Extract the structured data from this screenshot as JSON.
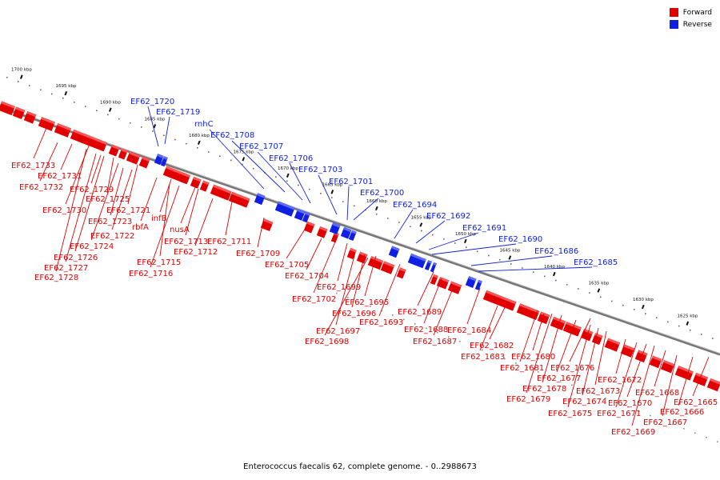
{
  "colors": {
    "forward": "#e00000",
    "forward_light": "#ff5555",
    "reverse": "#1020e0",
    "reverse_light": "#5c6cff",
    "axis": "#888888"
  },
  "legend": [
    {
      "label": "Forward",
      "color": "#e00000"
    },
    {
      "label": "Reverse",
      "color": "#1020e0"
    }
  ],
  "caption": "Enterococcus faecalis 62, complete genome. - 0..2988673",
  "scale_ticks": [
    "1700 kbp",
    "1695 kbp",
    "1690 kbp",
    "1685 kbp",
    "1680 kbp",
    "1675 kbp",
    "1670 kbp",
    "1665 kbp",
    "1660 kbp",
    "1655 kbp",
    "1650 kbp",
    "1645 kbp",
    "1640 kbp",
    "1635 kbp",
    "1630 kbp",
    "1625 kbp"
  ],
  "reverse_genes": [
    "EF62_1720",
    "EF62_1719",
    "rnhC",
    "EF62_1708",
    "EF62_1707",
    "EF62_1706",
    "EF62_1703",
    "EF62_1701",
    "EF62_1700",
    "EF62_1694",
    "EF62_1692",
    "EF62_1691",
    "EF62_1690",
    "EF62_1686",
    "EF62_1685"
  ],
  "forward_genes": [
    "EF62_1733",
    "EF62_1731",
    "EF62_1732",
    "EF62_1730",
    "EF62_1729",
    "EF62_1725",
    "EF62_1721",
    "EF62_1723",
    "EF62_1722",
    "EF62_1724",
    "EF62_1726",
    "EF62_1727",
    "EF62_1728",
    "infB",
    "rbfA",
    "nusA",
    "EF62_1715",
    "EF62_1716",
    "EF62_1713",
    "EF62_1712",
    "EF62_1711",
    "EF62_1709",
    "EF62_1705",
    "EF62_1704",
    "EF62_1702",
    "EF62_1699",
    "EF62_1696",
    "EF62_1695",
    "EF62_1697",
    "EF62_1698",
    "EF62_1693",
    "EF62_1689",
    "EF62_1688",
    "EF62_1687",
    "EF62_1684",
    "EF62_1682",
    "EF62_1683",
    "EF62_1680",
    "EF62_1681",
    "EF62_1676",
    "EF62_1677",
    "EF62_1678",
    "EF62_1679",
    "EF62_1673",
    "EF62_1674",
    "EF62_1675",
    "EF62_1672",
    "EF62_1671",
    "EF62_1670",
    "EF62_1668",
    "EF62_1669",
    "EF62_1667",
    "EF62_1666",
    "EF62_1665"
  ]
}
